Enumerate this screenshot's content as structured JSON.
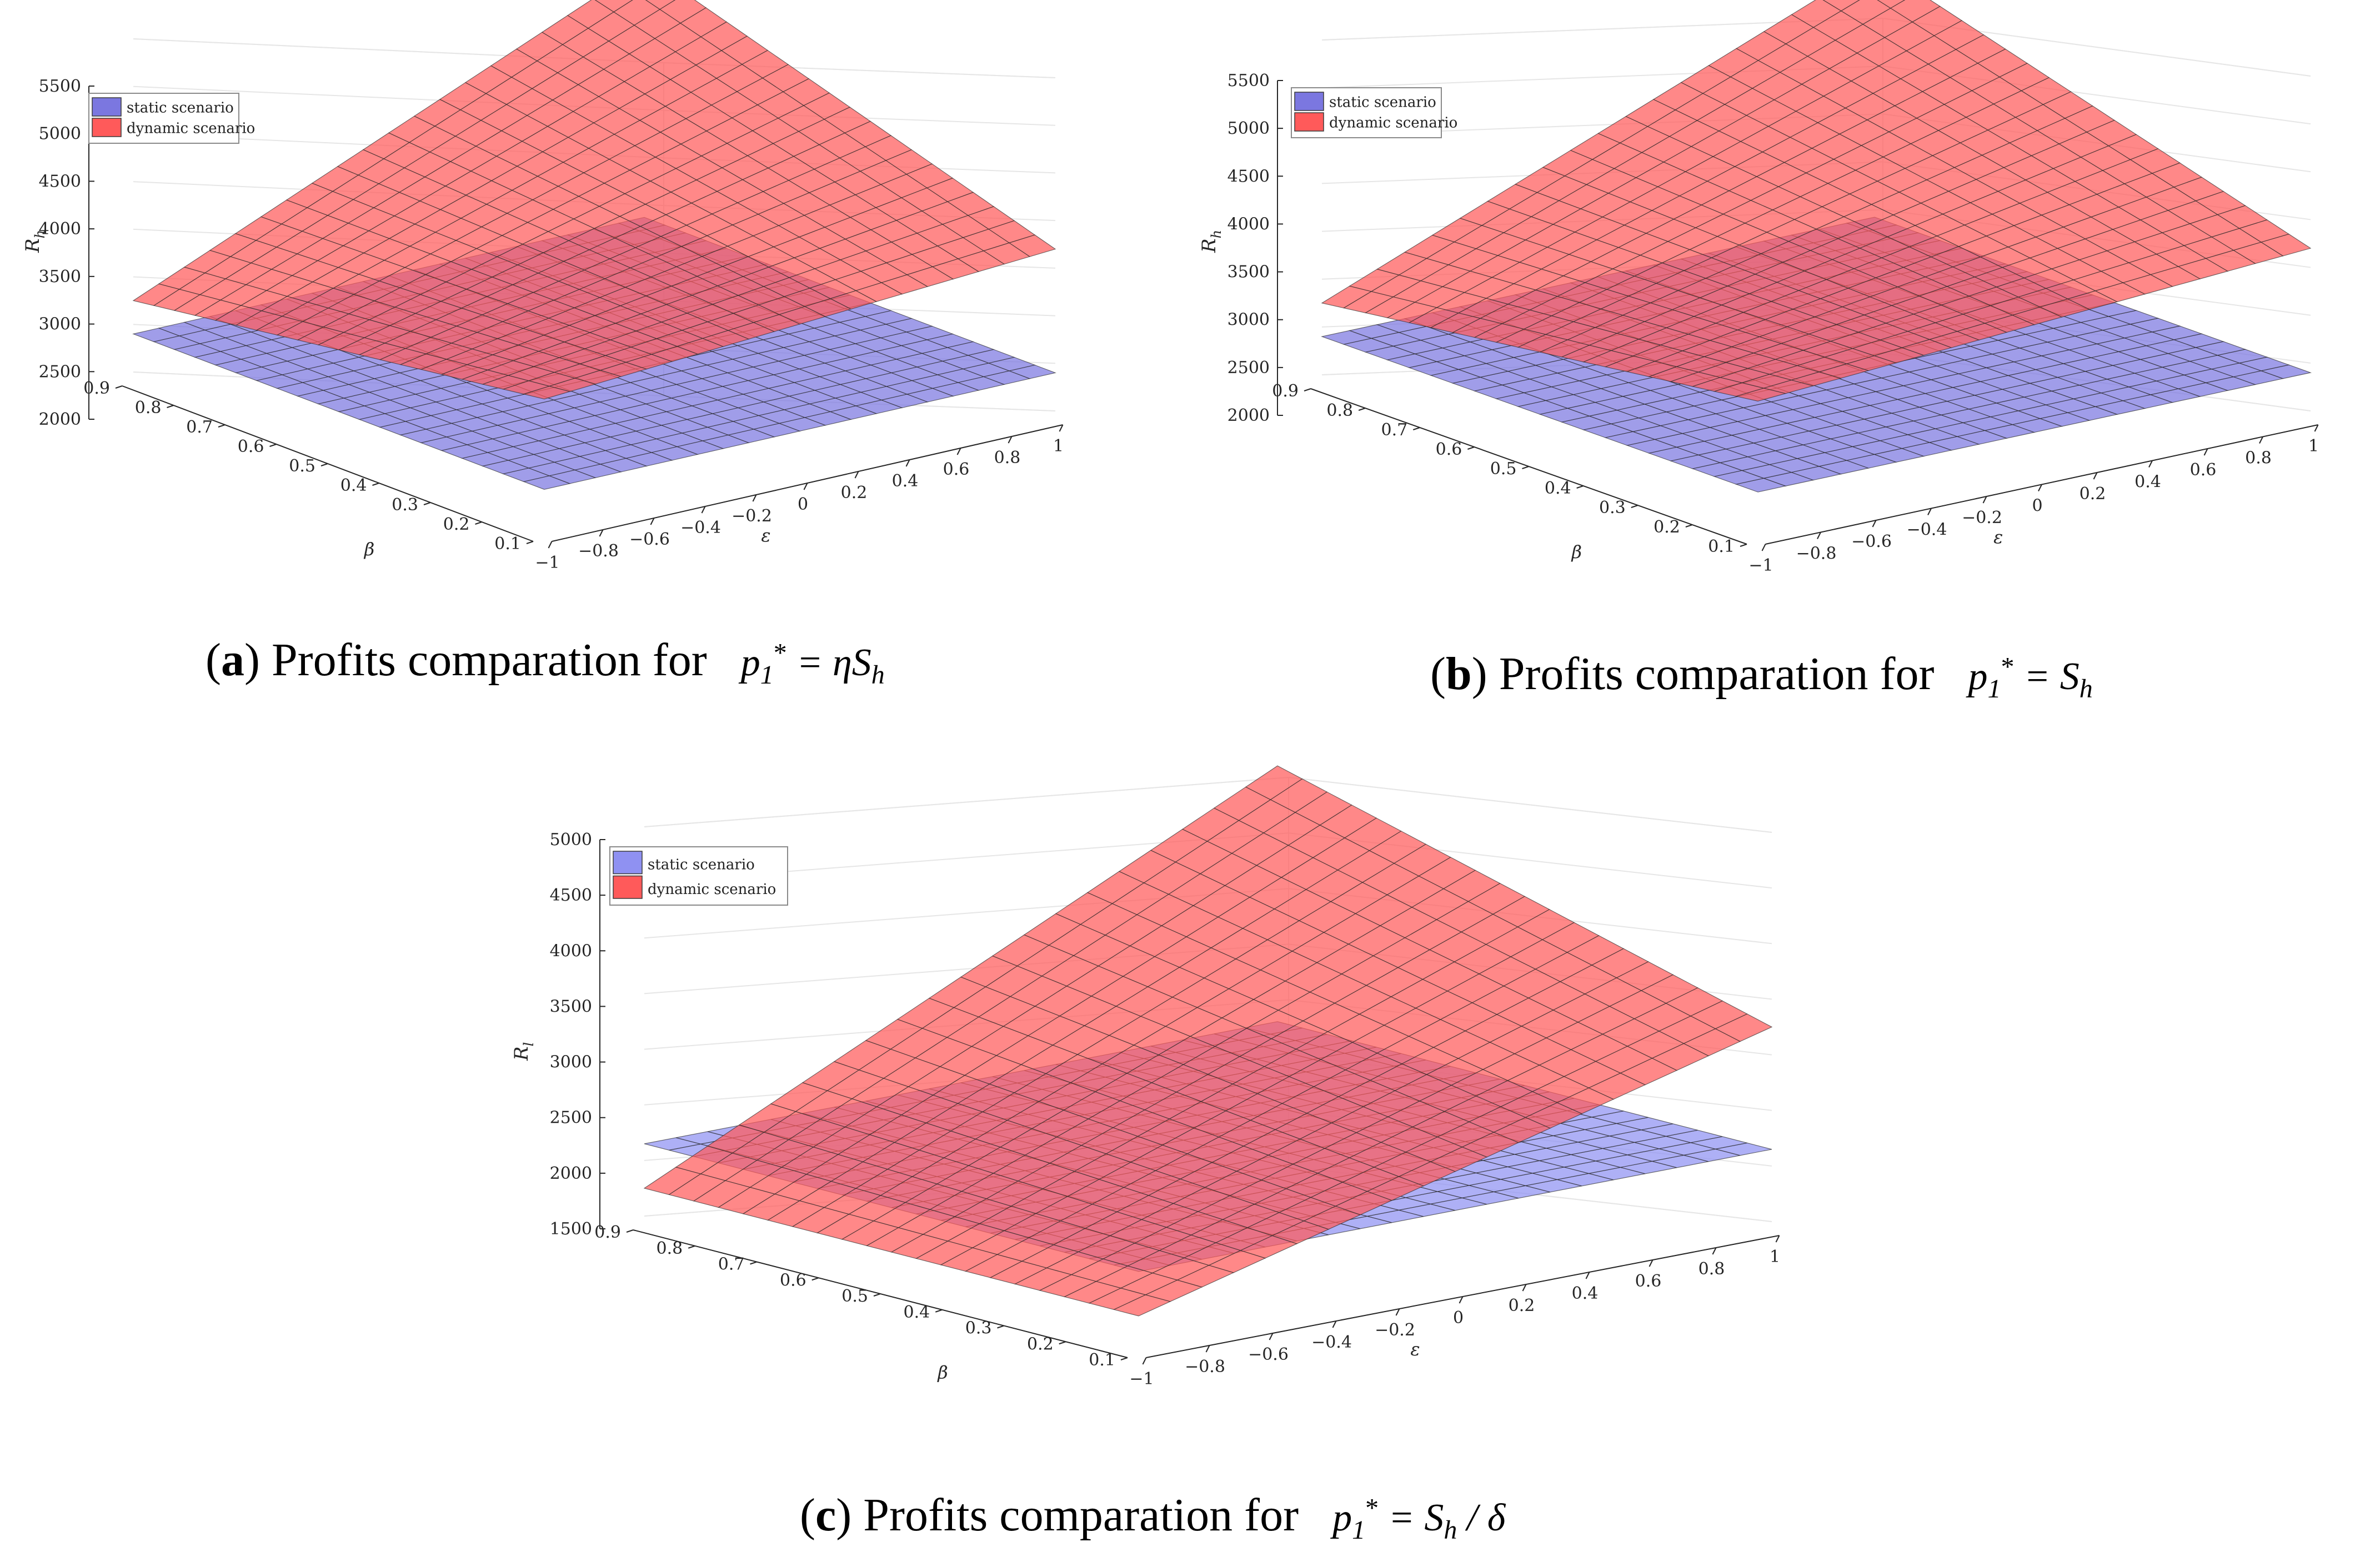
{
  "figure": {
    "captions": [
      {
        "letter": "a",
        "text": "Profits comparation for",
        "formula": "ηS",
        "formula_sub": "h",
        "lhs": "p",
        "lhs_sub": "1",
        "lhs_sup": "*",
        "rhs_post": ""
      },
      {
        "letter": "b",
        "text": "Profits comparation for",
        "formula": "S",
        "formula_sub": "h",
        "lhs": "p",
        "lhs_sub": "1",
        "lhs_sup": "*",
        "rhs_post": ""
      },
      {
        "letter": "c",
        "text": "Profits comparation for",
        "formula": "S",
        "formula_sub": "h",
        "lhs": "p",
        "lhs_sub": "1",
        "lhs_sup": "*",
        "rhs_post": " / δ"
      }
    ]
  },
  "chart_data": [
    {
      "id": "a",
      "type": "surface",
      "title": "",
      "xlabel": "ε",
      "ylabel": "β",
      "zlabel": "R_h",
      "zlabel_main": "R",
      "zlabel_sub": "h",
      "x_range": [
        -1,
        1
      ],
      "y_range": [
        0.1,
        0.9
      ],
      "zlim": [
        2000,
        5500
      ],
      "x_ticks": [
        -1,
        -0.8,
        -0.6,
        -0.4,
        -0.2,
        0,
        0.2,
        0.4,
        0.6,
        0.8,
        1
      ],
      "x_tick_labels": [
        "−1",
        "−0.8",
        "−0.6",
        "−0.4",
        "−0.2",
        "0",
        "0.2",
        "0.4",
        "0.6",
        "0.8",
        "1"
      ],
      "y_ticks": [
        0.1,
        0.2,
        0.3,
        0.4,
        0.5,
        0.6,
        0.7,
        0.8,
        0.9
      ],
      "y_tick_labels": [
        "0.1",
        "0.2",
        "0.3",
        "0.4",
        "0.5",
        "0.6",
        "0.7",
        "0.8",
        "0.9"
      ],
      "z_ticks": [
        2000,
        2500,
        3000,
        3500,
        4000,
        4500,
        5000,
        5500
      ],
      "z_tick_labels": [
        "2000",
        "2500",
        "3000",
        "3500",
        "4000",
        "4500",
        "5000",
        "5500"
      ],
      "grid": true,
      "legend_position": "top-left",
      "series": [
        {
          "name": "static scenario",
          "color": "#7b77e0",
          "corners": {
            "eps_neg1_beta_0.1": 2400,
            "eps_pos1_beta_0.1": 2400,
            "eps_neg1_beta_0.9": 2400,
            "eps_pos1_beta_0.9": 2400
          }
        },
        {
          "name": "dynamic scenario",
          "color": "#ff5a5a",
          "corners": {
            "eps_neg1_beta_0.1": 3350,
            "eps_pos1_beta_0.1": 3700,
            "eps_neg1_beta_0.9": 2750,
            "eps_pos1_beta_0.9": 5050
          }
        }
      ]
    },
    {
      "id": "b",
      "type": "surface",
      "title": "",
      "xlabel": "ε",
      "ylabel": "β",
      "zlabel": "R_h",
      "zlabel_main": "R",
      "zlabel_sub": "h",
      "x_range": [
        -1,
        1
      ],
      "y_range": [
        0.1,
        0.9
      ],
      "zlim": [
        2000,
        5500
      ],
      "x_ticks": [
        -1,
        -0.8,
        -0.6,
        -0.4,
        -0.2,
        0,
        0.2,
        0.4,
        0.6,
        0.8,
        1
      ],
      "x_tick_labels": [
        "−1",
        "−0.8",
        "−0.6",
        "−0.4",
        "−0.2",
        "0",
        "0.2",
        "0.4",
        "0.6",
        "0.8",
        "1"
      ],
      "y_ticks": [
        0.1,
        0.2,
        0.3,
        0.4,
        0.5,
        0.6,
        0.7,
        0.8,
        0.9
      ],
      "y_tick_labels": [
        "0.1",
        "0.2",
        "0.3",
        "0.4",
        "0.5",
        "0.6",
        "0.7",
        "0.8",
        "0.9"
      ],
      "z_ticks": [
        2000,
        2500,
        3000,
        3500,
        4000,
        4500,
        5000,
        5500
      ],
      "z_tick_labels": [
        "2000",
        "2500",
        "3000",
        "3500",
        "4000",
        "4500",
        "5000",
        "5500"
      ],
      "grid": true,
      "legend_position": "top-left",
      "series": [
        {
          "name": "static scenario",
          "color": "#7b77e0",
          "corners": {
            "eps_neg1_beta_0.1": 2400,
            "eps_pos1_beta_0.1": 2400,
            "eps_neg1_beta_0.9": 2400,
            "eps_pos1_beta_0.9": 2400
          }
        },
        {
          "name": "dynamic scenario",
          "color": "#ff5a5a",
          "corners": {
            "eps_neg1_beta_0.1": 3350,
            "eps_pos1_beta_0.1": 3700,
            "eps_neg1_beta_0.9": 2750,
            "eps_pos1_beta_0.9": 5050
          }
        }
      ]
    },
    {
      "id": "c",
      "type": "surface",
      "title": "",
      "xlabel": "ε",
      "ylabel": "β",
      "zlabel": "R_l",
      "zlabel_main": "R",
      "zlabel_sub": "l",
      "x_range": [
        -1,
        1
      ],
      "y_range": [
        0.1,
        0.9
      ],
      "zlim": [
        1500,
        5000
      ],
      "x_ticks": [
        -1,
        -0.8,
        -0.6,
        -0.4,
        -0.2,
        0,
        0.2,
        0.4,
        0.6,
        0.8,
        1
      ],
      "x_tick_labels": [
        "−1",
        "−0.8",
        "−0.6",
        "−0.4",
        "−0.2",
        "0",
        "0.2",
        "0.4",
        "0.6",
        "0.8",
        "1"
      ],
      "y_ticks": [
        0.1,
        0.2,
        0.3,
        0.4,
        0.5,
        0.6,
        0.7,
        0.8,
        0.9
      ],
      "y_tick_labels": [
        "0.1",
        "0.2",
        "0.3",
        "0.4",
        "0.5",
        "0.6",
        "0.7",
        "0.8",
        "0.9"
      ],
      "z_ticks": [
        1500,
        2000,
        2500,
        3000,
        3500,
        4000,
        4500,
        5000
      ],
      "z_tick_labels": [
        "1500",
        "2000",
        "2500",
        "3000",
        "3500",
        "4000",
        "4500",
        "5000"
      ],
      "grid": true,
      "legend_position": "top-left",
      "series": [
        {
          "name": "static scenario",
          "color": "#8f91f2",
          "corners": {
            "eps_neg1_beta_0.1": 2150,
            "eps_pos1_beta_0.1": 2150,
            "eps_neg1_beta_0.9": 2150,
            "eps_pos1_beta_0.9": 2150
          }
        },
        {
          "name": "dynamic scenario",
          "color": "#ff5a5a",
          "corners": {
            "eps_neg1_beta_0.1": 1750,
            "eps_pos1_beta_0.1": 3250,
            "eps_neg1_beta_0.9": 1750,
            "eps_pos1_beta_0.9": 4450
          }
        }
      ]
    }
  ]
}
